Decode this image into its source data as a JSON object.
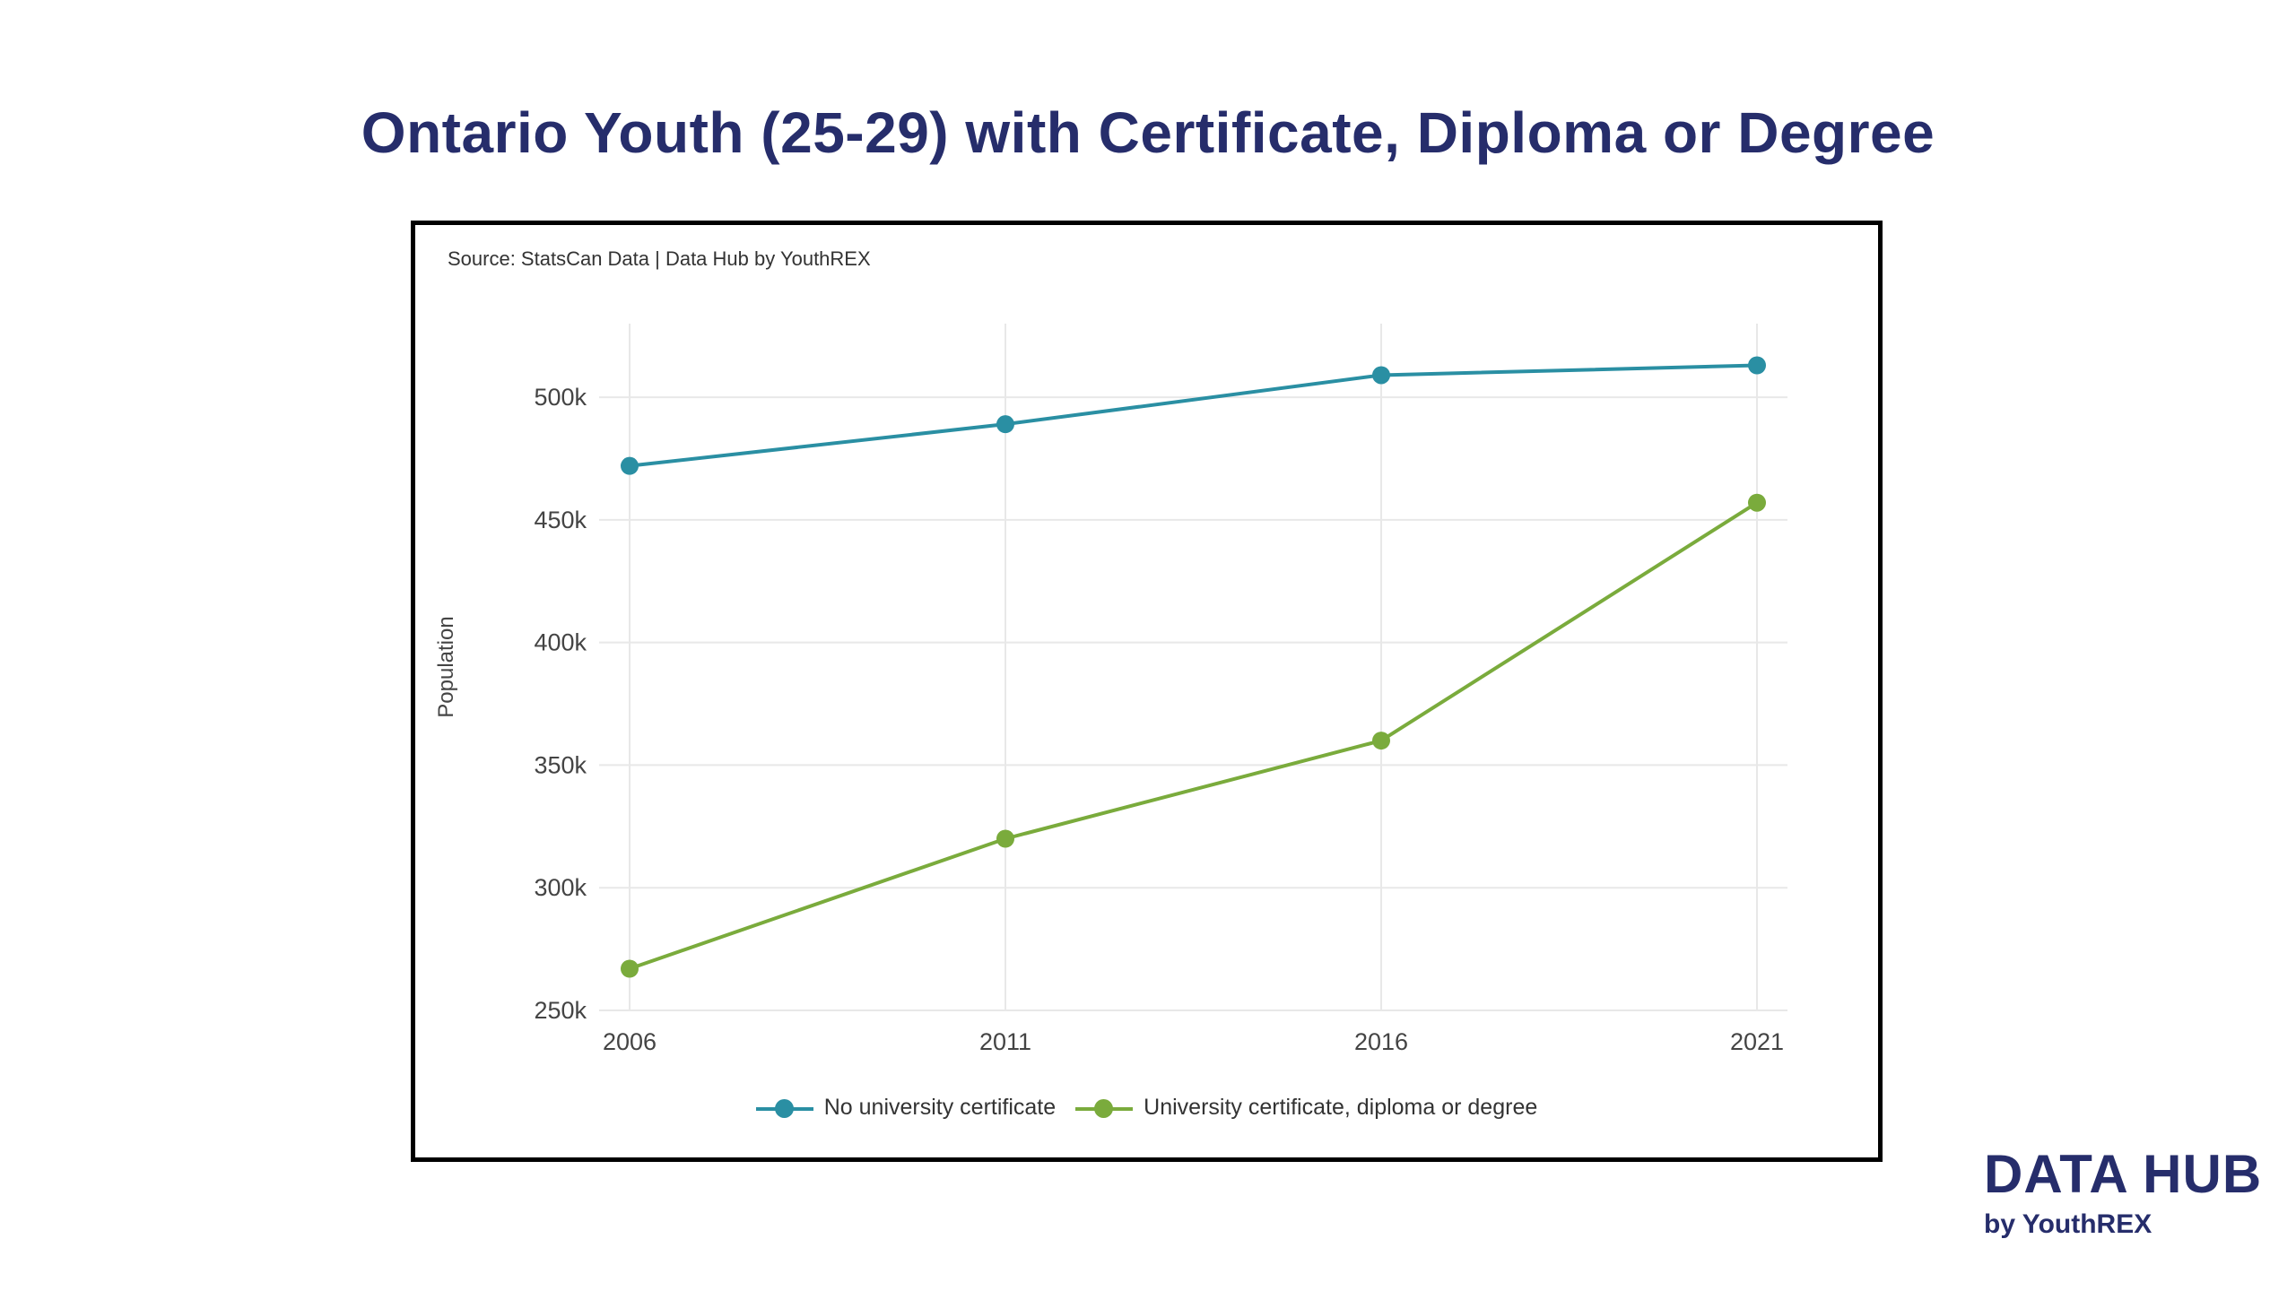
{
  "title": "Ontario Youth (25-29) with Certificate, Diploma or Degree",
  "source": "Source: StatsCan Data | Data Hub by YouthREX",
  "logo": {
    "main": "DATA HUB",
    "sub": "by YouthREX"
  },
  "colors": {
    "title": "#262d6b",
    "series1": "#2a8fa3",
    "series2": "#7aab3c",
    "grid": "#e8e8e8"
  },
  "chart_data": {
    "type": "line",
    "title": "Ontario Youth (25-29) with Certificate, Diploma or Degree",
    "xlabel": "",
    "ylabel": "Population",
    "x": [
      "2006",
      "2011",
      "2016",
      "2021"
    ],
    "ylim": [
      250000,
      530000
    ],
    "yticks": [
      250000,
      300000,
      350000,
      400000,
      450000,
      500000
    ],
    "ytick_labels": [
      "250k",
      "300k",
      "350k",
      "400k",
      "450k",
      "500k"
    ],
    "grid": true,
    "legend_position": "bottom",
    "series": [
      {
        "name": "No university certificate",
        "color": "#2a8fa3",
        "values": [
          472000,
          489000,
          509000,
          513000
        ]
      },
      {
        "name": "University certificate, diploma or degree",
        "color": "#7aab3c",
        "values": [
          267000,
          320000,
          360000,
          457000
        ]
      }
    ]
  }
}
